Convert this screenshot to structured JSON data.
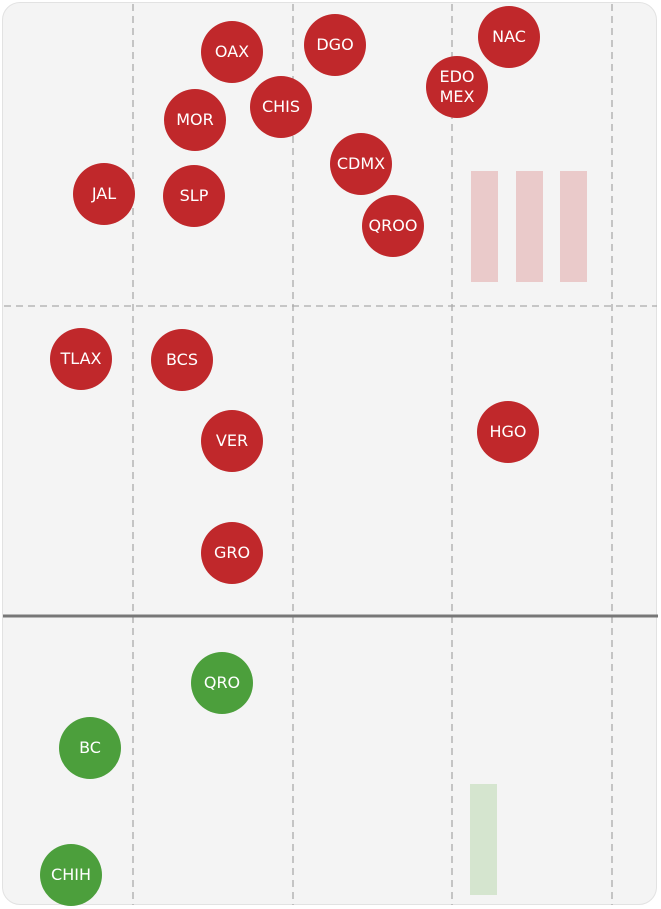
{
  "groups": [
    {
      "color": "#c0282b",
      "nodes": [
        "OAX",
        "DGO",
        "NAC",
        "EDO MEX",
        "MOR",
        "CHIS",
        "CDMX",
        "JAL",
        "SLP",
        "QROO",
        "TLAX",
        "BCS",
        "VER",
        "HGO",
        "GRO"
      ]
    },
    {
      "color": "#4c9f3c",
      "nodes": [
        "QRO",
        "BC",
        "CHIH"
      ]
    }
  ]
}
